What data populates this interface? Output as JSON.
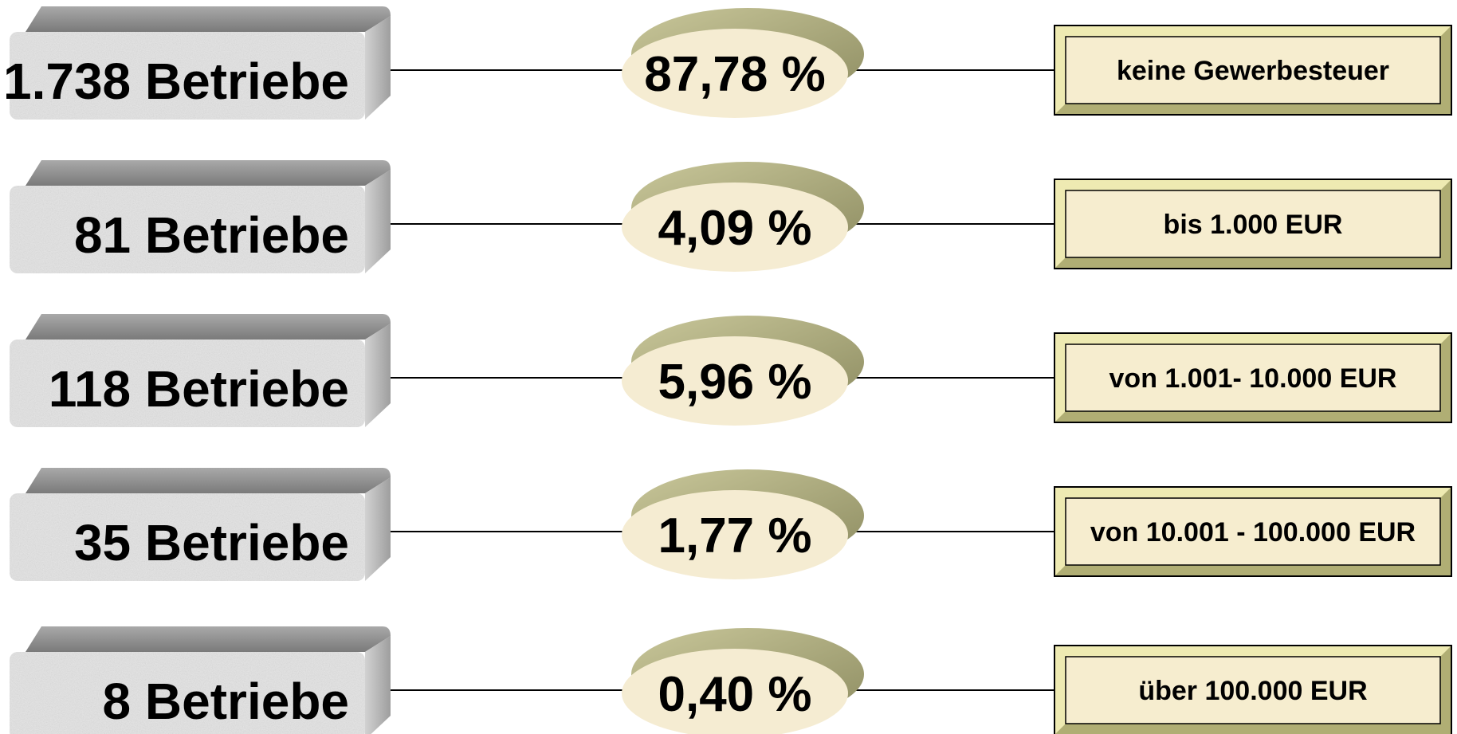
{
  "rows": [
    {
      "count_label": "1.738 Betriebe",
      "percent_label": "87,78 %",
      "category_label": "keine Gewerbesteuer"
    },
    {
      "count_label": "81 Betriebe",
      "percent_label": "4,09 %",
      "category_label": "bis 1.000 EUR"
    },
    {
      "count_label": "118 Betriebe",
      "percent_label": "5,96 %",
      "category_label": "von 1.001- 10.000 EUR"
    },
    {
      "count_label": "35 Betriebe",
      "percent_label": "1,77 %",
      "category_label": "von 10.001 - 100.000 EUR"
    },
    {
      "count_label": "8 Betriebe",
      "percent_label": "0,40 %",
      "category_label": "über 100.000 EUR"
    }
  ],
  "colors": {
    "block_face": "#e4e4e4",
    "block_top": "#8c8c8c",
    "block_side": "#bdbdbd",
    "disc_back": "#a7a67c",
    "disc_front": "#f5ecd2",
    "label_fill": "#f6edcf",
    "label_bevel_light": "#eeeab2",
    "label_bevel_dark": "#b0ae74",
    "connector": "#000000"
  }
}
